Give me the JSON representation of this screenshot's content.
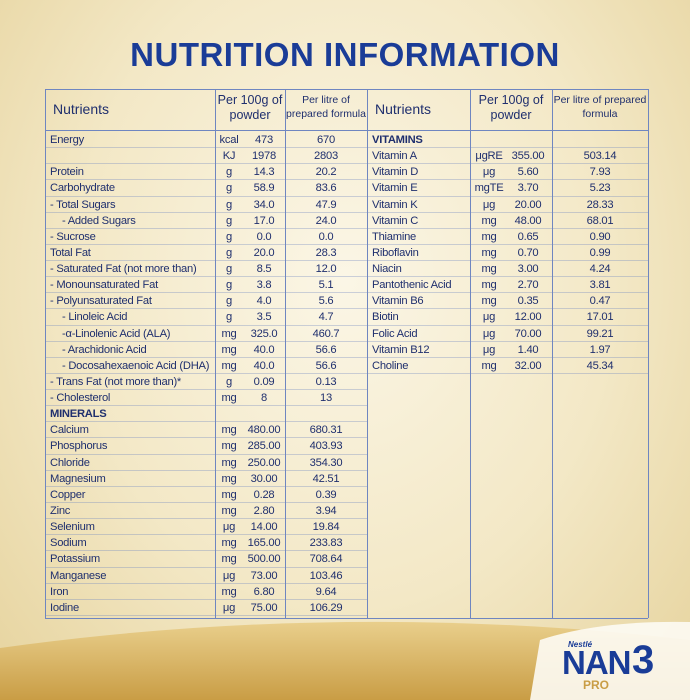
{
  "title": "NUTRITION INFORMATION",
  "table": {
    "left_header": [
      "Nutrients",
      "Per 100g of powder",
      "Per litre of prepared formula"
    ],
    "right_header": [
      "Nutrients",
      "Per 100g of powder",
      "Per litre of prepared formula"
    ],
    "left_rows": [
      {
        "nutrient": "Energy",
        "unit": "kcal",
        "per100g": "473",
        "perlitre": "670"
      },
      {
        "unit": "KJ",
        "per100g": "1978",
        "perlitre": "2803"
      },
      {
        "nutrient": "Protein",
        "unit": "g",
        "per100g": "14.3",
        "perlitre": "20.2"
      },
      {
        "nutrient": "Carbohydrate",
        "unit": "g",
        "per100g": "58.9",
        "perlitre": "83.6"
      },
      {
        "nutrient": "- Total Sugars",
        "unit": "g",
        "per100g": "34.0",
        "perlitre": "47.9"
      },
      {
        "nutrient": "- Added Sugars",
        "unit": "g",
        "per100g": "17.0",
        "perlitre": "24.0"
      },
      {
        "nutrient": "- Sucrose",
        "unit": "g",
        "per100g": "0.0",
        "perlitre": "0.0"
      },
      {
        "nutrient": "Total Fat",
        "unit": "g",
        "per100g": "20.0",
        "perlitre": "28.3"
      },
      {
        "nutrient": "- Saturated Fat (not more than)",
        "unit": "g",
        "per100g": "8.5",
        "perlitre": "12.0"
      },
      {
        "nutrient": "- Monounsaturated Fat",
        "unit": "g",
        "per100g": "3.8",
        "perlitre": "5.1"
      },
      {
        "nutrient": "- Polyunsaturated Fat",
        "unit": "g",
        "per100g": "4.0",
        "perlitre": "5.6"
      },
      {
        "nutrient": "- Linoleic Acid",
        "unit": "g",
        "per100g": "3.5",
        "perlitre": "4.7"
      },
      {
        "nutrient": "-α-Linolenic Acid (ALA)",
        "unit": "mg",
        "per100g": "325.0",
        "perlitre": "460.7"
      },
      {
        "nutrient": "- Arachidonic Acid",
        "unit": "mg",
        "per100g": "40.0",
        "perlitre": "56.6"
      },
      {
        "nutrient": "- Docosahexaenoic Acid (DHA)",
        "unit": "mg",
        "per100g": "40.0",
        "perlitre": "56.6"
      },
      {
        "nutrient": "- Trans Fat (not more than)*",
        "unit": "g",
        "per100g": "0.09",
        "perlitre": "0.13"
      },
      {
        "nutrient": "- Cholesterol",
        "unit": "mg",
        "per100g": "8",
        "perlitre": "13"
      },
      {
        "section": "MINERALS"
      },
      {
        "nutrient": "Calcium",
        "unit": "mg",
        "per100g": "480.00",
        "perlitre": "680.31"
      },
      {
        "nutrient": "Phosphorus",
        "unit": "mg",
        "per100g": "285.00",
        "perlitre": "403.93"
      },
      {
        "nutrient": "Chloride",
        "unit": "mg",
        "per100g": "250.00",
        "perlitre": "354.30"
      },
      {
        "nutrient": "Magnesium",
        "unit": "mg",
        "per100g": "30.00",
        "perlitre": "42.51"
      },
      {
        "nutrient": "Copper",
        "unit": "mg",
        "per100g": "0.28",
        "perlitre": "0.39"
      },
      {
        "nutrient": "Zinc",
        "unit": "mg",
        "per100g": "2.80",
        "perlitre": "3.94"
      },
      {
        "nutrient": "Selenium",
        "unit": "μg",
        "per100g": "14.00",
        "perlitre": "19.84"
      },
      {
        "nutrient": "Sodium",
        "unit": "mg",
        "per100g": "165.00",
        "perlitre": "233.83"
      },
      {
        "nutrient": "Potassium",
        "unit": "mg",
        "per100g": "500.00",
        "perlitre": "708.64"
      },
      {
        "nutrient": "Manganese",
        "unit": "μg",
        "per100g": "73.00",
        "perlitre": "103.46"
      },
      {
        "nutrient": "Iron",
        "unit": "mg",
        "per100g": "6.80",
        "perlitre": "9.64"
      },
      {
        "nutrient": "Iodine",
        "unit": "μg",
        "per100g": "75.00",
        "perlitre": "106.29"
      }
    ],
    "right_rows": [
      {
        "section": "VITAMINS"
      },
      {
        "nutrient": "Vitamin A",
        "unit": "μgRE",
        "per100g": "355.00",
        "perlitre": "503.14"
      },
      {
        "nutrient": "Vitamin D",
        "unit": "μg",
        "per100g": "5.60",
        "perlitre": "7.93"
      },
      {
        "nutrient": "Vitamin E",
        "unit": "mgTE",
        "per100g": "3.70",
        "perlitre": "5.23"
      },
      {
        "nutrient": "Vitamin K",
        "unit": "μg",
        "per100g": "20.00",
        "perlitre": "28.33"
      },
      {
        "nutrient": "Vitamin C",
        "unit": "mg",
        "per100g": "48.00",
        "perlitre": "68.01"
      },
      {
        "nutrient": "Thiamine",
        "unit": "mg",
        "per100g": "0.65",
        "perlitre": "0.90"
      },
      {
        "nutrient": "Riboflavin",
        "unit": "mg",
        "per100g": "0.70",
        "perlitre": "0.99"
      },
      {
        "nutrient": "Niacin",
        "unit": "mg",
        "per100g": "3.00",
        "perlitre": "4.24"
      },
      {
        "nutrient": "Pantothenic Acid",
        "unit": "mg",
        "per100g": "2.70",
        "perlitre": "3.81"
      },
      {
        "nutrient": "Vitamin B6",
        "unit": "mg",
        "per100g": "0.35",
        "perlitre": "0.47"
      },
      {
        "nutrient": "Biotin",
        "unit": "μg",
        "per100g": "12.00",
        "perlitre": "17.01"
      },
      {
        "nutrient": "Folic Acid",
        "unit": "μg",
        "per100g": "70.00",
        "perlitre": "99.21"
      },
      {
        "nutrient": "Vitamin B12",
        "unit": "μg",
        "per100g": "1.40",
        "perlitre": "1.97"
      },
      {
        "nutrient": "Choline",
        "unit": "mg",
        "per100g": "32.00",
        "perlitre": "45.34"
      }
    ]
  },
  "logo": {
    "brand": "Nestlé",
    "name": "NAN",
    "sub": "PRO",
    "stage": "3"
  }
}
